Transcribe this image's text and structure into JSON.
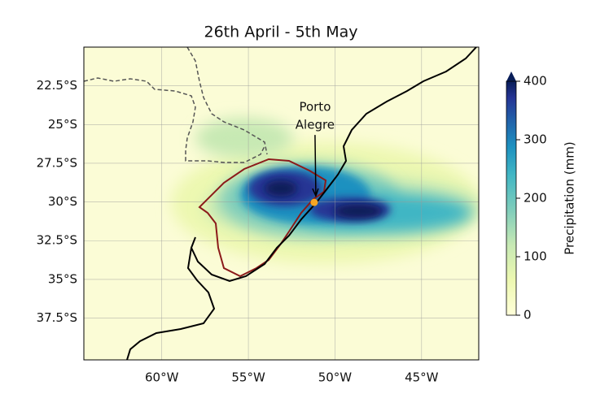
{
  "map": {
    "title": "26th April - 5th May",
    "lon_range": [
      -64.5,
      -41.7
    ],
    "lat_range": [
      -40.2,
      -20
    ],
    "lon_ticks": [
      {
        "value": -60,
        "label": "60°W"
      },
      {
        "value": -55,
        "label": "55°W"
      },
      {
        "value": -50,
        "label": "50°W"
      },
      {
        "value": -45,
        "label": "45°W"
      }
    ],
    "lat_ticks": [
      {
        "value": -22.5,
        "label": "22.5°S"
      },
      {
        "value": -25,
        "label": "25°S"
      },
      {
        "value": -27.5,
        "label": "27.5°S"
      },
      {
        "value": -30,
        "label": "30°S"
      },
      {
        "value": -32.5,
        "label": "32.5°S"
      },
      {
        "value": -35,
        "label": "35°S"
      },
      {
        "value": -37.5,
        "label": "37.5°S"
      }
    ],
    "annotation": {
      "lines": [
        "Porto",
        "Alegre"
      ],
      "lon": -51.2,
      "lat": -30.03,
      "color": "#f5a623"
    },
    "colorbar": {
      "label": "Precipitation (mm)",
      "clim": [
        0,
        400
      ],
      "ticks": [
        0,
        100,
        200,
        300,
        400
      ]
    }
  }
}
